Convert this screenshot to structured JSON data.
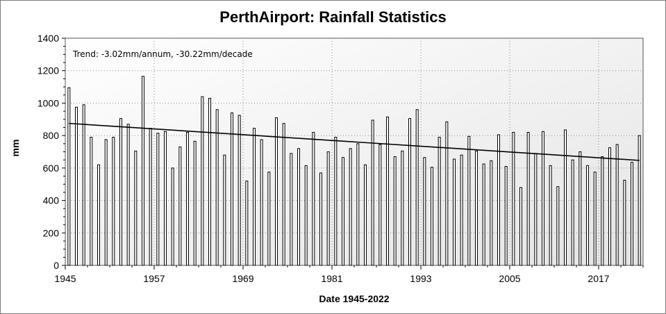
{
  "chart_data": {
    "type": "bar",
    "title": "PerthAirport: Rainfall Statistics",
    "xlabel": "Date 1945-2022",
    "ylabel": "mm",
    "annotation": "Trend: -3.02mm/annum, -30.22mm/decade",
    "ylim": [
      0,
      1400
    ],
    "yticks": [
      0,
      200,
      400,
      600,
      800,
      1000,
      1200,
      1400
    ],
    "xlim": [
      1945,
      2023
    ],
    "xticks": [
      1945,
      1957,
      1969,
      1981,
      1993,
      2005,
      2017
    ],
    "grid": true,
    "start_year": 1945,
    "values": [
      1095,
      975,
      990,
      790,
      620,
      775,
      790,
      905,
      870,
      705,
      1165,
      845,
      815,
      825,
      600,
      730,
      820,
      765,
      1040,
      1030,
      960,
      680,
      940,
      925,
      520,
      845,
      775,
      575,
      910,
      875,
      690,
      720,
      615,
      820,
      570,
      700,
      790,
      665,
      720,
      750,
      620,
      895,
      745,
      915,
      670,
      705,
      905,
      960,
      665,
      605,
      790,
      885,
      655,
      680,
      795,
      705,
      625,
      645,
      805,
      610,
      820,
      480,
      820,
      690,
      825,
      615,
      485,
      835,
      650,
      700,
      615,
      575,
      670,
      725,
      745,
      525,
      635,
      800
    ],
    "trend": {
      "start": [
        1945,
        875
      ],
      "end": [
        2022,
        647
      ]
    },
    "colors": {
      "bar_fill": "#ffffff",
      "bar_stroke": "#000000",
      "trend": "#000000",
      "grid": "#8a8a8a"
    }
  }
}
